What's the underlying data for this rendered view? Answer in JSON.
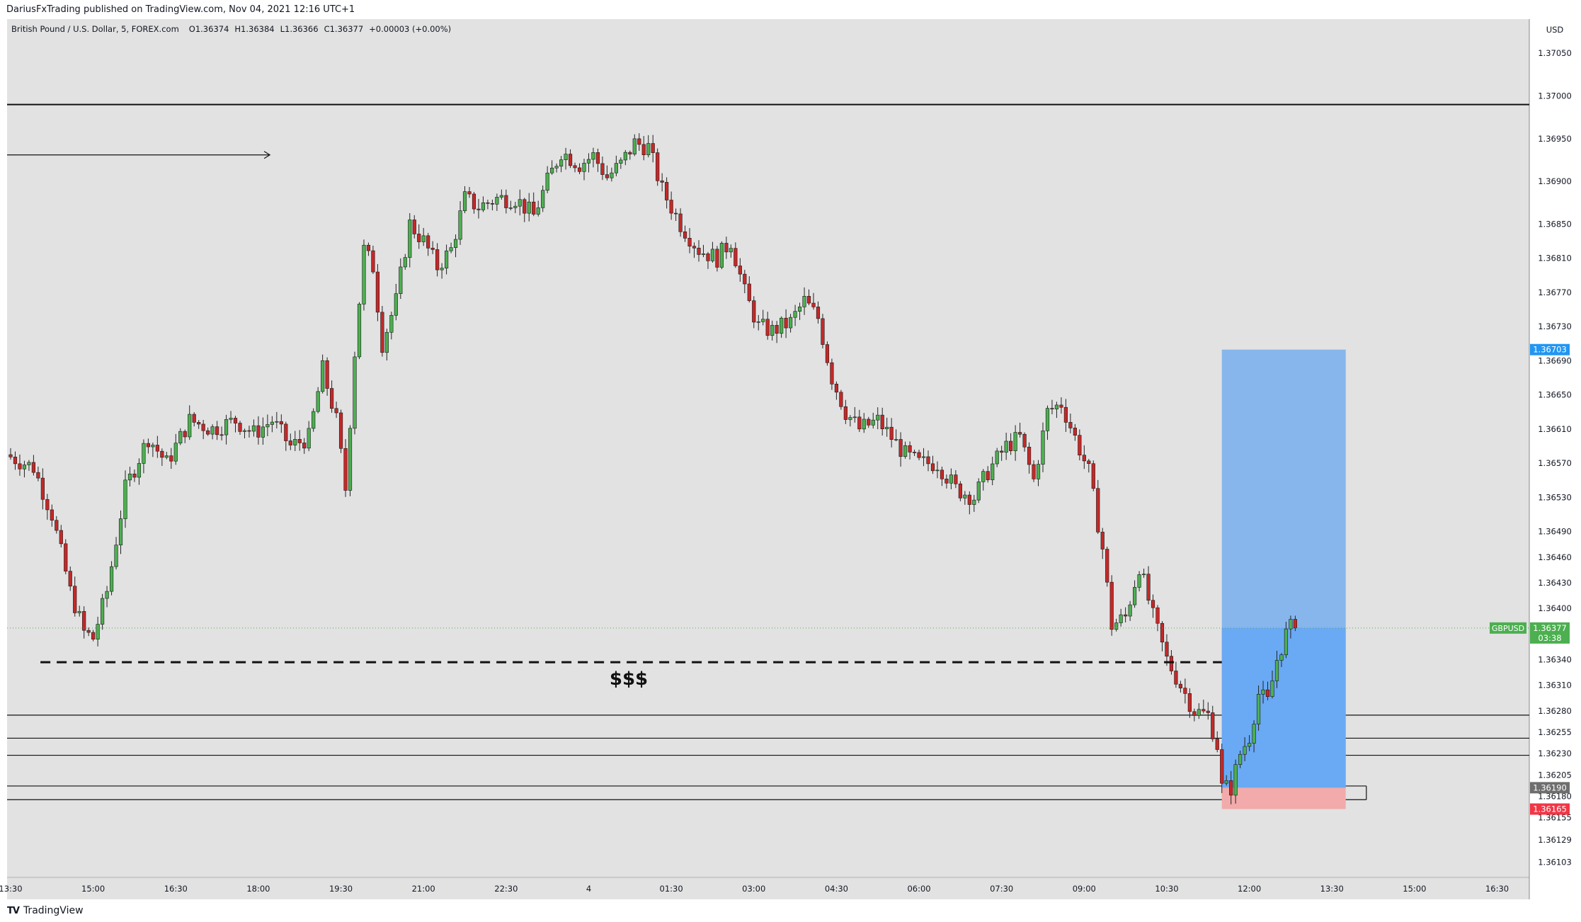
{
  "publisher_line": "DariusFxTrading published on TradingView.com, Nov 04, 2021 12:16 UTC+1",
  "brand": "TradingView",
  "colors": {
    "background": "#e2e2e2",
    "up": "#4caf50",
    "down": "#c62828",
    "wick": "#222222",
    "profit_zone": "#86b6ec",
    "profit_zone_active": "#6aa9f4",
    "loss_zone": "#f2aaaa",
    "current_price": "#4caf50",
    "target_price": "#2196f3",
    "stop_price": "#f23645",
    "entry_price": "#6e6e6e"
  },
  "chart_data": {
    "type": "candlestick",
    "symbol_line": {
      "name": "British Pound / U.S. Dollar, 5, FOREX.com",
      "open": "O1.36374",
      "high": "H1.36384",
      "low": "L1.36366",
      "close": "C1.36377",
      "change": "+0.00003 (+0.00%)"
    },
    "currency_label": "USD",
    "ylim": [
      1.36085,
      1.3709
    ],
    "y_ticks": [
      "1.37050",
      "1.37000",
      "1.36950",
      "1.36900",
      "1.36850",
      "1.36810",
      "1.36770",
      "1.36730",
      "1.36690",
      "1.36650",
      "1.36610",
      "1.36570",
      "1.36530",
      "1.36490",
      "1.36460",
      "1.36430",
      "1.36400",
      "1.36340",
      "1.36310",
      "1.36280",
      "1.36255",
      "1.36230",
      "1.36205",
      "1.36180",
      "1.36155",
      "1.36129",
      "1.36103"
    ],
    "x_ticks": [
      "13:30",
      "15:00",
      "16:30",
      "18:00",
      "19:30",
      "21:00",
      "22:30",
      "4",
      "01:30",
      "03:00",
      "04:30",
      "06:00",
      "07:30",
      "09:00",
      "10:30",
      "12:00",
      "13:30",
      "15:00",
      "16:30"
    ],
    "x_ticks_bars": [
      0,
      18,
      36,
      54,
      72,
      90,
      108,
      126,
      144,
      162,
      180,
      198,
      216,
      234,
      252,
      270,
      288,
      306,
      324
    ],
    "anchors": [
      {
        "bar": 0,
        "price": 1.3658
      },
      {
        "bar": 6,
        "price": 1.36565
      },
      {
        "bar": 10,
        "price": 1.3651
      },
      {
        "bar": 14,
        "price": 1.3642
      },
      {
        "bar": 17,
        "price": 1.36372
      },
      {
        "bar": 19,
        "price": 1.36365
      },
      {
        "bar": 22,
        "price": 1.3642
      },
      {
        "bar": 26,
        "price": 1.3654
      },
      {
        "bar": 31,
        "price": 1.366
      },
      {
        "bar": 35,
        "price": 1.3657
      },
      {
        "bar": 40,
        "price": 1.3662
      },
      {
        "bar": 45,
        "price": 1.3661
      },
      {
        "bar": 50,
        "price": 1.3662
      },
      {
        "bar": 54,
        "price": 1.36605
      },
      {
        "bar": 58,
        "price": 1.3662
      },
      {
        "bar": 62,
        "price": 1.3659
      },
      {
        "bar": 66,
        "price": 1.366
      },
      {
        "bar": 69,
        "price": 1.3668
      },
      {
        "bar": 72,
        "price": 1.3662
      },
      {
        "bar": 74,
        "price": 1.3654
      },
      {
        "bar": 76,
        "price": 1.367
      },
      {
        "bar": 78,
        "price": 1.3682
      },
      {
        "bar": 80,
        "price": 1.368
      },
      {
        "bar": 82,
        "price": 1.3671
      },
      {
        "bar": 85,
        "price": 1.3676
      },
      {
        "bar": 88,
        "price": 1.3685
      },
      {
        "bar": 91,
        "price": 1.3683
      },
      {
        "bar": 94,
        "price": 1.368
      },
      {
        "bar": 97,
        "price": 1.3682
      },
      {
        "bar": 100,
        "price": 1.3688
      },
      {
        "bar": 103,
        "price": 1.3687
      },
      {
        "bar": 107,
        "price": 1.3688
      },
      {
        "bar": 111,
        "price": 1.3688
      },
      {
        "bar": 115,
        "price": 1.3686
      },
      {
        "bar": 118,
        "price": 1.369
      },
      {
        "bar": 121,
        "price": 1.36935
      },
      {
        "bar": 125,
        "price": 1.3692
      },
      {
        "bar": 128,
        "price": 1.3693
      },
      {
        "bar": 131,
        "price": 1.36905
      },
      {
        "bar": 134,
        "price": 1.3692
      },
      {
        "bar": 137,
        "price": 1.36945
      },
      {
        "bar": 140,
        "price": 1.3694
      },
      {
        "bar": 143,
        "price": 1.3689
      },
      {
        "bar": 147,
        "price": 1.3685
      },
      {
        "bar": 151,
        "price": 1.3682
      },
      {
        "bar": 155,
        "price": 1.3681
      },
      {
        "bar": 158,
        "price": 1.3683
      },
      {
        "bar": 161,
        "price": 1.3677
      },
      {
        "bar": 164,
        "price": 1.3673
      },
      {
        "bar": 167,
        "price": 1.36725
      },
      {
        "bar": 171,
        "price": 1.36735
      },
      {
        "bar": 174,
        "price": 1.3676
      },
      {
        "bar": 177,
        "price": 1.3674
      },
      {
        "bar": 180,
        "price": 1.3667
      },
      {
        "bar": 183,
        "price": 1.3663
      },
      {
        "bar": 186,
        "price": 1.3661
      },
      {
        "bar": 190,
        "price": 1.3662
      },
      {
        "bar": 193,
        "price": 1.366
      },
      {
        "bar": 196,
        "price": 1.3658
      },
      {
        "bar": 199,
        "price": 1.3657
      },
      {
        "bar": 203,
        "price": 1.3657
      },
      {
        "bar": 207,
        "price": 1.3654
      },
      {
        "bar": 211,
        "price": 1.3653
      },
      {
        "bar": 214,
        "price": 1.3656
      },
      {
        "bar": 218,
        "price": 1.3659
      },
      {
        "bar": 221,
        "price": 1.366
      },
      {
        "bar": 224,
        "price": 1.3655
      },
      {
        "bar": 227,
        "price": 1.3663
      },
      {
        "bar": 230,
        "price": 1.3664
      },
      {
        "bar": 233,
        "price": 1.366
      },
      {
        "bar": 236,
        "price": 1.3656
      },
      {
        "bar": 239,
        "price": 1.3647
      },
      {
        "bar": 241,
        "price": 1.3638
      },
      {
        "bar": 244,
        "price": 1.3639
      },
      {
        "bar": 247,
        "price": 1.3645
      },
      {
        "bar": 250,
        "price": 1.3639
      },
      {
        "bar": 253,
        "price": 1.3634
      },
      {
        "bar": 256,
        "price": 1.3631
      },
      {
        "bar": 259,
        "price": 1.3628
      },
      {
        "bar": 262,
        "price": 1.36275
      },
      {
        "bar": 264,
        "price": 1.3624
      },
      {
        "bar": 265,
        "price": 1.3619
      },
      {
        "bar": 267,
        "price": 1.3619
      },
      {
        "bar": 269,
        "price": 1.3623
      },
      {
        "bar": 271,
        "price": 1.3625
      },
      {
        "bar": 273,
        "price": 1.363
      },
      {
        "bar": 275,
        "price": 1.3629
      },
      {
        "bar": 277,
        "price": 1.3634
      },
      {
        "bar": 279,
        "price": 1.3637
      },
      {
        "bar": 280,
        "price": 1.36377
      }
    ],
    "levels": {
      "high_line": 1.3699,
      "liquidity": 1.36337,
      "zone_lines": [
        1.36275,
        1.36248,
        1.36228,
        1.36192,
        1.36176
      ]
    },
    "position": {
      "start_bar": 264,
      "end_bar": 291,
      "target": 1.36703,
      "entry": 1.3619,
      "stop": 1.36165
    },
    "annotations": {
      "liquidity_text": "$$$"
    },
    "current_price": {
      "symbol": "GBPUSD",
      "value": "1.36377",
      "countdown": "03:38"
    },
    "price_tags": {
      "target": "1.36703",
      "entry": "1.36190",
      "stop": "1.36165"
    }
  }
}
